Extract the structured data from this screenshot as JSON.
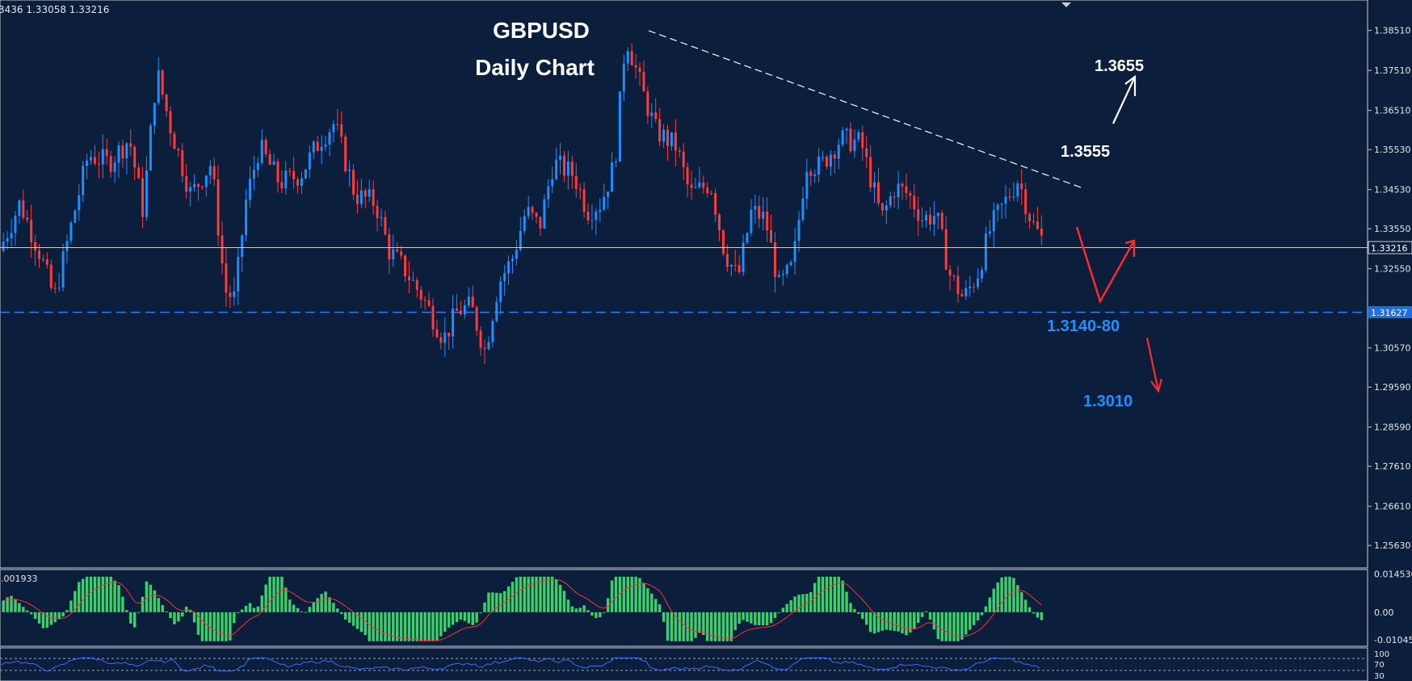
{
  "header": {
    "ohlc_readout": "3436 1.33058 1.33216"
  },
  "chart_data": [
    {
      "type": "candlestick",
      "title": "GBPUSD",
      "subtitle": "Daily Chart",
      "ylim": [
        1.2513,
        1.3917
      ],
      "y_ticks": [
        "1.38510",
        "1.37510",
        "1.36510",
        "1.35530",
        "1.34530",
        "1.33550",
        "1.32550",
        "1.30570",
        "1.29590",
        "1.28590",
        "1.27610",
        "1.26610",
        "1.25630"
      ],
      "current_price": {
        "value": 1.33216,
        "label": "1.33216"
      },
      "support_level": {
        "value": 1.31627,
        "label": "1.31627"
      },
      "annotations": [
        {
          "label": "1.3655",
          "color": "#ffffff"
        },
        {
          "label": "1.3555",
          "color": "#ffffff"
        },
        {
          "label": "1.3140-80",
          "color": "#1e90ff"
        },
        {
          "label": "1.3010",
          "color": "#1e90ff"
        }
      ],
      "trendline": {
        "from": [
          0.457,
          1.3868
        ],
        "to": [
          0.765,
          1.3473
        ],
        "style": "dashed",
        "color": "#e8e8e8"
      },
      "colors": {
        "bull": "#1f8fff",
        "bear": "#ff3b3b",
        "background": "#0b1e3b",
        "text": "#e6e6e6",
        "arrow_up": "#ffffff",
        "arrow_down": "#ff2a2a"
      },
      "guide_points": [
        [
          0.0,
          1.33
        ],
        [
          0.015,
          1.342
        ],
        [
          0.03,
          1.329
        ],
        [
          0.04,
          1.318
        ],
        [
          0.055,
          1.34
        ],
        [
          0.065,
          1.354
        ],
        [
          0.08,
          1.352
        ],
        [
          0.095,
          1.358
        ],
        [
          0.105,
          1.34
        ],
        [
          0.115,
          1.375
        ],
        [
          0.125,
          1.361
        ],
        [
          0.14,
          1.344
        ],
        [
          0.155,
          1.352
        ],
        [
          0.165,
          1.32
        ],
        [
          0.172,
          1.318
        ],
        [
          0.18,
          1.342
        ],
        [
          0.19,
          1.356
        ],
        [
          0.205,
          1.347
        ],
        [
          0.22,
          1.349
        ],
        [
          0.235,
          1.358
        ],
        [
          0.245,
          1.362
        ],
        [
          0.26,
          1.344
        ],
        [
          0.275,
          1.342
        ],
        [
          0.285,
          1.33
        ],
        [
          0.295,
          1.326
        ],
        [
          0.31,
          1.318
        ],
        [
          0.325,
          1.308
        ],
        [
          0.335,
          1.315
        ],
        [
          0.345,
          1.316
        ],
        [
          0.355,
          1.305
        ],
        [
          0.365,
          1.322
        ],
        [
          0.375,
          1.328
        ],
        [
          0.385,
          1.34
        ],
        [
          0.395,
          1.336
        ],
        [
          0.405,
          1.352
        ],
        [
          0.42,
          1.349
        ],
        [
          0.43,
          1.34
        ],
        [
          0.44,
          1.342
        ],
        [
          0.45,
          1.352
        ],
        [
          0.458,
          1.384
        ],
        [
          0.47,
          1.37
        ],
        [
          0.48,
          1.36
        ],
        [
          0.495,
          1.356
        ],
        [
          0.505,
          1.344
        ],
        [
          0.52,
          1.347
        ],
        [
          0.53,
          1.33
        ],
        [
          0.54,
          1.323
        ],
        [
          0.55,
          1.34
        ],
        [
          0.56,
          1.338
        ],
        [
          0.57,
          1.321
        ],
        [
          0.58,
          1.326
        ],
        [
          0.59,
          1.352
        ],
        [
          0.6,
          1.351
        ],
        [
          0.615,
          1.358
        ],
        [
          0.63,
          1.357
        ],
        [
          0.645,
          1.338
        ],
        [
          0.655,
          1.346
        ],
        [
          0.665,
          1.344
        ],
        [
          0.675,
          1.338
        ],
        [
          0.685,
          1.339
        ],
        [
          0.695,
          1.324
        ],
        [
          0.705,
          1.318
        ],
        [
          0.715,
          1.324
        ],
        [
          0.725,
          1.336
        ],
        [
          0.735,
          1.342
        ],
        [
          0.745,
          1.348
        ],
        [
          0.755,
          1.337
        ],
        [
          0.762,
          1.333
        ]
      ]
    },
    {
      "type": "histogram",
      "series": [
        {
          "values_label": "0.001933"
        }
      ],
      "y_ticks": [
        "0.014536",
        "0.00",
        "-0.010459"
      ],
      "ylim": [
        -0.0123,
        0.0156
      ],
      "colors": {
        "bar": "#3ad16b",
        "signal": "#ff3333"
      }
    },
    {
      "type": "line",
      "y_ticks": [
        "100",
        "70",
        "30"
      ],
      "ylim": [
        0,
        100
      ],
      "colors": {
        "line": "#3d6dff",
        "levels": "#8fa3bf"
      }
    }
  ]
}
